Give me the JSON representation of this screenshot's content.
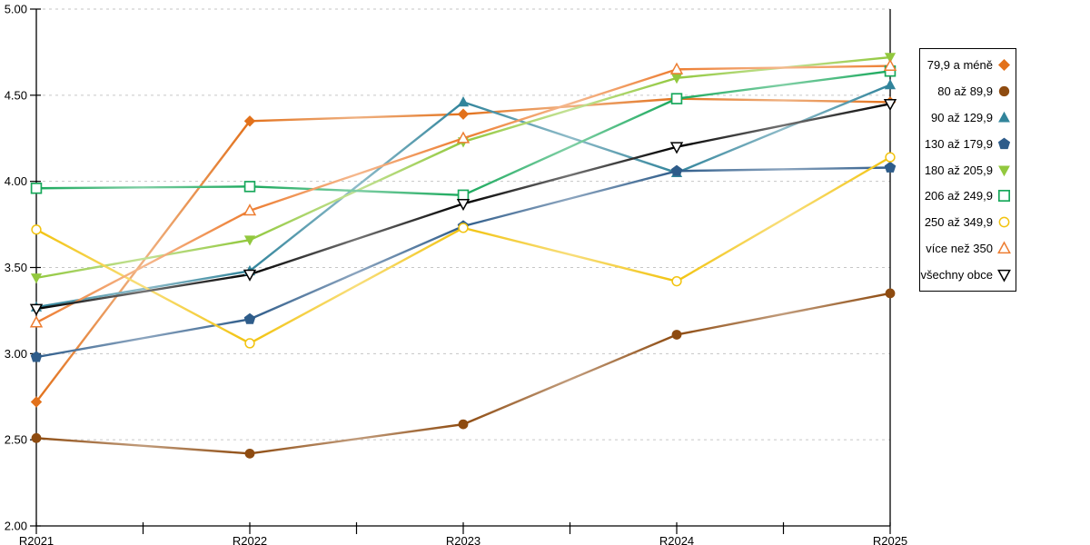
{
  "chart_data": {
    "type": "line",
    "title": "",
    "categories": [
      "R2021",
      "R2022",
      "R2023",
      "R2024",
      "R2025"
    ],
    "ylim": [
      2.0,
      5.0
    ],
    "y_tick_step": 0.5,
    "y_tick_labels": [
      "5.00",
      "4.50",
      "4.00",
      "3.50",
      "3.00",
      "2.50",
      "2.00"
    ],
    "y_tick_values": [
      5.0,
      4.5,
      4.0,
      3.5,
      3.0,
      2.5,
      2.0
    ],
    "x_minor_ticks_between": 1,
    "grid": "horizontal-dashed",
    "legend_position": "right",
    "axis_color": "#000000",
    "gridline_color": "#c6c6c6",
    "series": [
      {
        "name": "79,9 a méně",
        "color": "#E2711B",
        "marker": "diamond-filled",
        "values": [
          2.72,
          4.35,
          4.39,
          4.48,
          4.46
        ]
      },
      {
        "name": "80 až 89,9",
        "color": "#8E4B10",
        "marker": "circle-filled",
        "values": [
          2.51,
          2.42,
          2.59,
          3.11,
          3.35
        ]
      },
      {
        "name": "90 až 129,9",
        "color": "#31849B",
        "marker": "triangle-up-filled",
        "values": [
          3.27,
          3.48,
          4.46,
          4.05,
          4.56
        ]
      },
      {
        "name": "130 až 179,9",
        "color": "#2E5C8A",
        "marker": "pentagon-filled",
        "values": [
          2.98,
          3.2,
          3.74,
          4.06,
          4.08
        ]
      },
      {
        "name": "180 až 205,9",
        "color": "#92C83E",
        "marker": "triangle-down-filled",
        "values": [
          3.44,
          3.66,
          4.23,
          4.6,
          4.72
        ]
      },
      {
        "name": "206 až 249,9",
        "color": "#18A85B",
        "marker": "square-open",
        "values": [
          3.96,
          3.97,
          3.92,
          4.48,
          4.64
        ]
      },
      {
        "name": "250 až 349,9",
        "color": "#F2C30F",
        "marker": "circle-open",
        "values": [
          3.72,
          3.06,
          3.73,
          3.42,
          4.14
        ]
      },
      {
        "name": "více než 350",
        "color": "#ED7D31",
        "marker": "triangle-up-open",
        "values": [
          3.18,
          3.83,
          4.25,
          4.65,
          4.67
        ]
      },
      {
        "name": "všechny obce",
        "color": "#000000",
        "marker": "triangle-down-open",
        "values": [
          3.26,
          3.46,
          3.87,
          4.2,
          4.45
        ]
      }
    ]
  }
}
